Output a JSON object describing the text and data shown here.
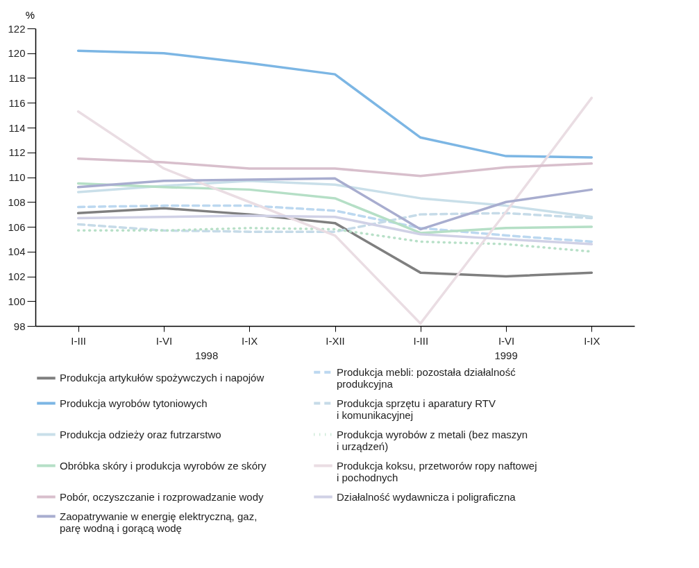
{
  "chart_data": {
    "type": "line",
    "ylabel": "%",
    "categories": [
      "I-III",
      "I-VI",
      "I-IX",
      "I-XII",
      "I-III",
      "I-VI",
      "I-IX"
    ],
    "annotations": [
      "1998",
      "1999"
    ],
    "ylim": [
      98,
      122
    ],
    "yticks": [
      98,
      100,
      102,
      104,
      106,
      108,
      110,
      112,
      114,
      116,
      118,
      120,
      122
    ],
    "grid": false,
    "legend": "bottom",
    "marker": "none",
    "series": [
      {
        "name": "Produkcja artykułów spożywczych i napojów",
        "color": "#7f7f7f",
        "line_style": "solid",
        "values": [
          107.1,
          107.5,
          107.0,
          106.3,
          102.3,
          102.0,
          102.3
        ]
      },
      {
        "name": "Produkcja mebli: pozostała działalność produkcyjna",
        "color": "#bcd8f0",
        "line_style": "dashed",
        "values": [
          107.6,
          107.7,
          107.7,
          107.3,
          105.9,
          105.3,
          104.8
        ]
      },
      {
        "name": "Produkcja wyrobów tytoniowych",
        "color": "#7cb6e4",
        "line_style": "solid",
        "values": [
          120.2,
          120.0,
          119.2,
          118.3,
          113.2,
          111.7,
          111.6
        ]
      },
      {
        "name": "Produkcja sprzętu i aparatury RTV i komunikacyjnej",
        "color": "#c6dbe8",
        "line_style": "dashed",
        "values": [
          106.2,
          105.7,
          105.6,
          105.6,
          107.0,
          107.1,
          106.7
        ]
      },
      {
        "name": "Produkcja odzieży oraz futrzarstwo",
        "color": "#c9dfe9",
        "line_style": "solid",
        "values": [
          108.8,
          109.3,
          109.7,
          109.4,
          108.3,
          107.7,
          106.8
        ]
      },
      {
        "name": "Produkcja wyrobów z metali (bez maszyn i urządzeń)",
        "color": "#b8e0c8",
        "line_style": "dotted",
        "values": [
          105.7,
          105.7,
          105.9,
          105.8,
          104.8,
          104.6,
          104.0
        ]
      },
      {
        "name": "Obróbka skóry i produkcja wyrobów ze skóry",
        "color": "#b5dfc6",
        "line_style": "solid",
        "values": [
          109.5,
          109.2,
          109.0,
          108.3,
          105.5,
          105.9,
          106.0
        ]
      },
      {
        "name": "Produkcja koksu, przetworów ropy naftowej i pochodnych",
        "color": "#eadde3",
        "line_style": "solid",
        "values": [
          115.3,
          110.7,
          108.0,
          105.3,
          98.2,
          107.2,
          116.4
        ]
      },
      {
        "name": "Pobór, oczyszczanie i rozprowadzanie wody",
        "color": "#d8bfcc",
        "line_style": "solid",
        "values": [
          111.5,
          111.2,
          110.7,
          110.7,
          110.1,
          110.8,
          111.1
        ]
      },
      {
        "name": "Działalność wydawnicza i poligraficzna",
        "color": "#d0d1e6",
        "line_style": "solid",
        "values": [
          106.7,
          106.8,
          106.9,
          106.8,
          105.4,
          105.0,
          104.6
        ]
      },
      {
        "name": "Zaopatrywanie w energię elektryczną, gaz, parę wodną i gorącą wodę",
        "color": "#a8adcf",
        "line_style": "solid",
        "values": [
          109.2,
          109.7,
          109.8,
          109.9,
          105.8,
          108.0,
          109.0
        ]
      }
    ]
  }
}
